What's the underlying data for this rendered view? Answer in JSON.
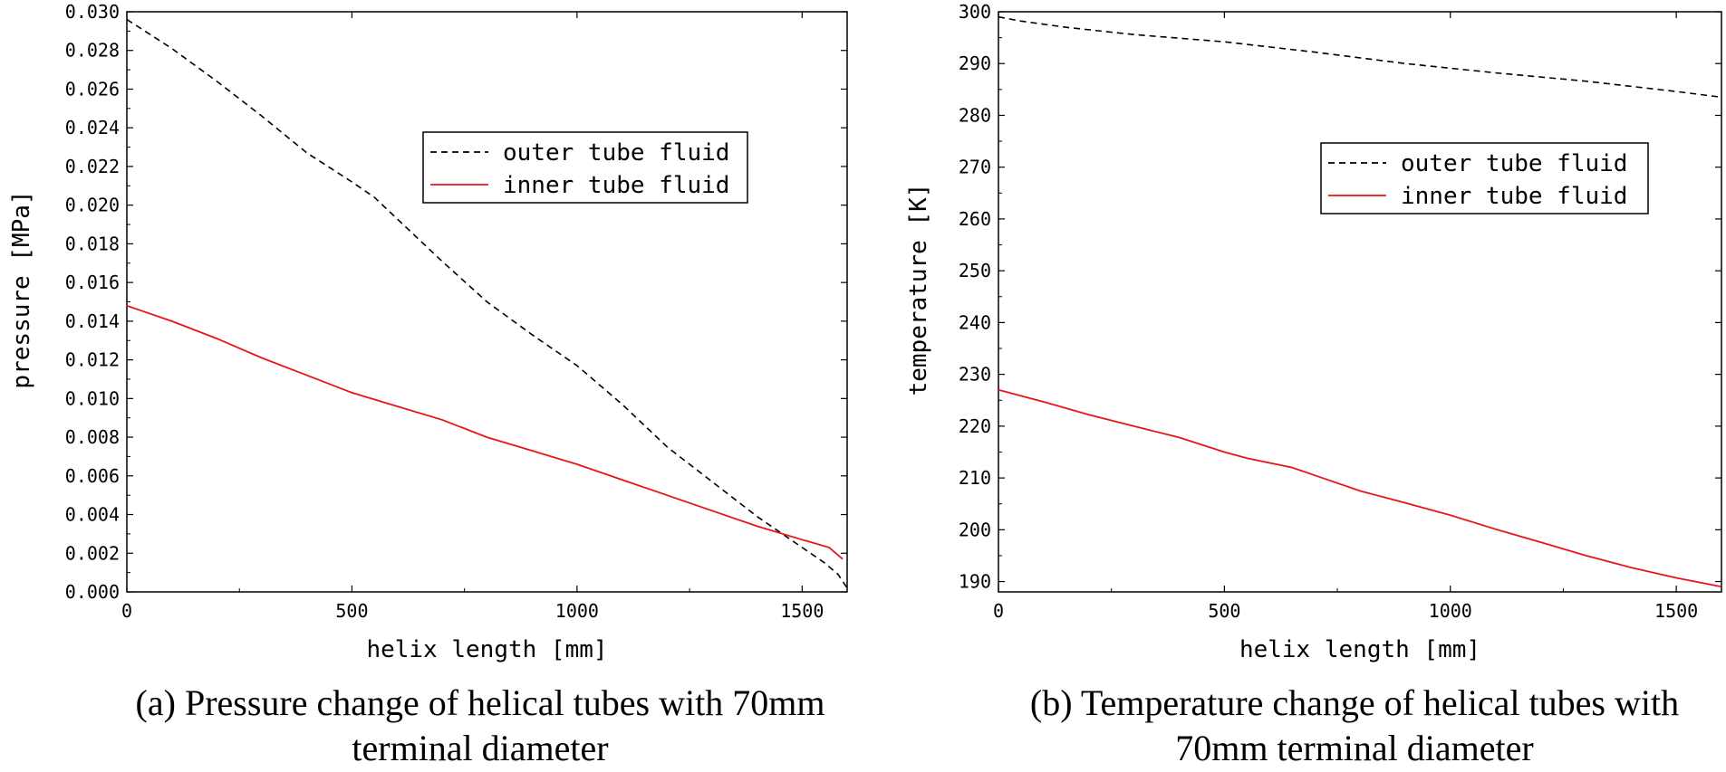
{
  "chart_data": [
    {
      "type": "line",
      "title": "",
      "xlabel": "helix length [mm]",
      "ylabel": "pressure [MPa]",
      "xlim": [
        0,
        1600
      ],
      "ylim": [
        0.0,
        0.03
      ],
      "xticks": [
        0,
        500,
        1000,
        1500
      ],
      "xtick_labels": [
        "0",
        "500",
        "1000",
        "1500"
      ],
      "yticks": [
        0.0,
        0.002,
        0.004,
        0.006,
        0.008,
        0.01,
        0.012,
        0.014,
        0.016,
        0.018,
        0.02,
        0.022,
        0.024,
        0.026,
        0.028,
        0.03
      ],
      "ytick_labels": [
        "0.000",
        "0.002",
        "0.004",
        "0.006",
        "0.008",
        "0.010",
        "0.012",
        "0.014",
        "0.016",
        "0.018",
        "0.020",
        "0.022",
        "0.024",
        "0.026",
        "0.028",
        "0.030"
      ],
      "legend_position": "upper-right",
      "series": [
        {
          "name": "outer tube fluid",
          "color": "#000000",
          "dash": "dashed",
          "x": [
            0,
            100,
            200,
            300,
            400,
            500,
            550,
            600,
            700,
            800,
            900,
            1000,
            1100,
            1200,
            1300,
            1400,
            1500,
            1550,
            1580,
            1600
          ],
          "y": [
            0.0296,
            0.0281,
            0.0264,
            0.0246,
            0.0227,
            0.0212,
            0.0204,
            0.0193,
            0.0171,
            0.015,
            0.0133,
            0.0117,
            0.0097,
            0.0075,
            0.0057,
            0.0039,
            0.0023,
            0.0015,
            0.0009,
            0.0002
          ]
        },
        {
          "name": "inner tube fluid",
          "color": "#e8141b",
          "dash": "solid",
          "x": [
            0,
            100,
            200,
            300,
            400,
            500,
            600,
            700,
            800,
            900,
            1000,
            1100,
            1200,
            1300,
            1400,
            1500,
            1560,
            1590
          ],
          "y": [
            0.0148,
            0.014,
            0.0131,
            0.0121,
            0.0112,
            0.0103,
            0.0096,
            0.0089,
            0.008,
            0.0073,
            0.0066,
            0.0058,
            0.005,
            0.0042,
            0.0034,
            0.0027,
            0.0023,
            0.0017
          ]
        }
      ]
    },
    {
      "type": "line",
      "title": "",
      "xlabel": "helix length [mm]",
      "ylabel": "temperature [K]",
      "xlim": [
        0,
        1600
      ],
      "ylim": [
        188,
        300
      ],
      "xticks": [
        0,
        500,
        1000,
        1500
      ],
      "xtick_labels": [
        "0",
        "500",
        "1000",
        "1500"
      ],
      "yticks": [
        190,
        200,
        210,
        220,
        230,
        240,
        250,
        260,
        270,
        280,
        290,
        300
      ],
      "ytick_labels": [
        "190",
        "200",
        "210",
        "220",
        "230",
        "240",
        "250",
        "260",
        "270",
        "280",
        "290",
        "300"
      ],
      "legend_position": "upper-right",
      "series": [
        {
          "name": "outer tube fluid",
          "color": "#000000",
          "dash": "dashed",
          "x": [
            0,
            50,
            150,
            300,
            500,
            700,
            900,
            1100,
            1300,
            1500,
            1600
          ],
          "y": [
            299,
            298.2,
            297.0,
            295.6,
            294.2,
            292.2,
            290.0,
            288.2,
            286.6,
            284.6,
            283.5
          ]
        },
        {
          "name": "inner tube fluid",
          "color": "#e8141b",
          "dash": "solid",
          "x": [
            0,
            100,
            200,
            300,
            400,
            500,
            550,
            650,
            700,
            800,
            900,
            1000,
            1100,
            1200,
            1300,
            1400,
            1500,
            1600
          ],
          "y": [
            227,
            224.7,
            222.2,
            220.0,
            217.8,
            215.0,
            213.8,
            212.0,
            210.5,
            207.5,
            205.2,
            202.8,
            200.1,
            197.6,
            195.0,
            192.7,
            190.7,
            189.0
          ]
        }
      ]
    }
  ],
  "captions": [
    {
      "line1": "(a) Pressure change of helical tubes with 70mm",
      "line2": "terminal diameter"
    },
    {
      "line1": "(b) Temperature change of helical tubes with",
      "line2": "70mm terminal diameter"
    }
  ]
}
